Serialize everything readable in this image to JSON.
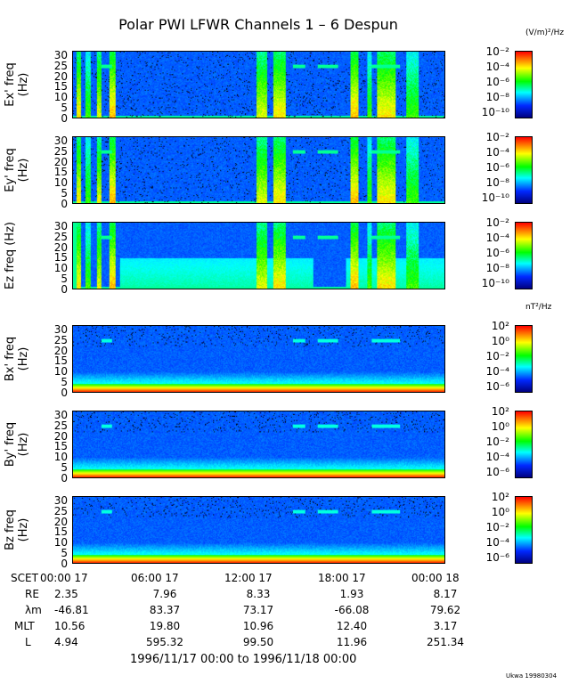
{
  "chart_data": {
    "type": "heatmap",
    "title": "Polar PWI LFWR Channels 1 – 6 Despun",
    "xlim_hours": [
      0,
      24
    ],
    "ylim": [
      0,
      32
    ],
    "y_ticks": [
      "30",
      "25",
      "20",
      "15",
      "10",
      "5",
      "0"
    ],
    "panels": [
      {
        "ylabel": "Ex' freq (Hz)",
        "group": "E"
      },
      {
        "ylabel": "Ey' freq (Hz)",
        "group": "E"
      },
      {
        "ylabel": "Ez freq (Hz)",
        "group": "E"
      },
      {
        "ylabel": "Bx' freq (Hz)",
        "group": "B"
      },
      {
        "ylabel": "By' freq (Hz)",
        "group": "B"
      },
      {
        "ylabel": "Bz freq (Hz)",
        "group": "B"
      }
    ],
    "colorbars": {
      "E": {
        "unit": "(V/m)²/Hz",
        "range_log10": [
          -10,
          -2
        ],
        "ticks": [
          "10⁻²",
          "10⁻⁴",
          "10⁻⁶",
          "10⁻⁸",
          "10⁻¹⁰"
        ]
      },
      "B": {
        "unit": "nT²/Hz",
        "range_log10": [
          -6,
          2
        ],
        "ticks": [
          "10²",
          "10⁰",
          "10⁻²",
          "10⁻⁴",
          "10⁻⁶"
        ]
      }
    },
    "colormap": [
      "#000080",
      "#0000ff",
      "#00ffff",
      "#00ff00",
      "#ffff00",
      "#ff0000"
    ],
    "ephemeris": {
      "labels": [
        "SCET",
        "RE",
        "λm",
        "MLT",
        "L"
      ],
      "times": [
        "00:00 17",
        "06:00 17",
        "12:00 17",
        "18:00 17",
        "00:00 18"
      ],
      "RE": [
        "2.35",
        "7.96",
        "8.33",
        "1.93",
        "8.17"
      ],
      "lambda_m": [
        "-46.81",
        "83.37",
        "73.17",
        "-66.08",
        "79.62"
      ],
      "MLT": [
        "10.56",
        "19.80",
        "10.96",
        "12.40",
        "3.17"
      ],
      "L": [
        "4.94",
        "595.32",
        "99.50",
        "11.96",
        "251.34"
      ]
    },
    "date_range": "1996/11/17 00:00 to 1996/11/18 00:00",
    "credit": "Ukwa 19980304"
  }
}
